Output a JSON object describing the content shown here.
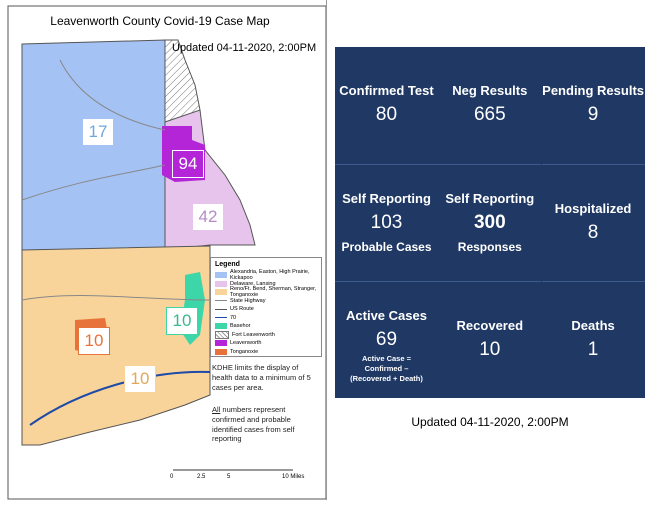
{
  "map": {
    "title": "Leavenworth County Covid-19 Case Map",
    "updated": "Updated 04-11-2020, 2:00PM",
    "regions": [
      {
        "label": "17"
      },
      {
        "label": "94"
      },
      {
        "label": "42"
      },
      {
        "label": "10"
      },
      {
        "label": "10"
      },
      {
        "label": "10"
      }
    ],
    "legend": {
      "title": "Legend",
      "items": [
        "Alexandria, Easton, High Prairie, Kickapoo",
        "Delaware, Lansing",
        "Reno/Ft. Bend, Sherman, Stranger, Tonganoxie",
        "State Highway",
        "US Route",
        "70",
        "Basehor",
        "Fort Leavenworth",
        "Leavenworth",
        "Tonganoxie"
      ]
    },
    "notes": [
      "KDHE limits the display of health data to a minimum of 5 cases per area."
    ],
    "note2": {
      "emphasis": "All",
      "text": " numbers represent confirmed and probable identified cases from self reporting"
    },
    "scale": [
      "0",
      "2.5",
      "5",
      "10 Miles"
    ]
  },
  "dashboard": {
    "cells": [
      {
        "label": "Confirmed Test",
        "value": "80"
      },
      {
        "label": "Neg Results",
        "value": "665"
      },
      {
        "label": "Pending Results",
        "value": "9"
      },
      {
        "label": "Self Reporting",
        "value": "103",
        "sub": "Probable Cases"
      },
      {
        "label": "Self Reporting",
        "value": "300",
        "sub": "Responses"
      },
      {
        "label": "Hospitalized",
        "value": "8"
      },
      {
        "label": "Active Cases",
        "value": "69",
        "note": "Active Case = Confirmed – (Recovered + Death)"
      },
      {
        "label": "Recovered",
        "value": "10"
      },
      {
        "label": "Deaths",
        "value": "1"
      }
    ],
    "updated": "Updated 04-11-2020, 2:00PM"
  }
}
